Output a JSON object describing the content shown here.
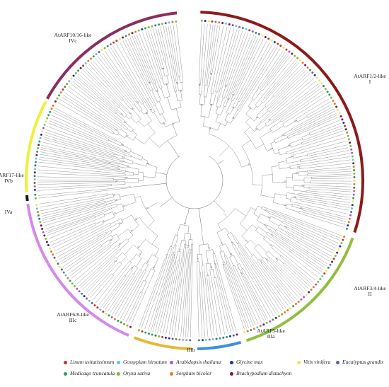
{
  "tree": {
    "center": [
      275,
      255
    ],
    "clades": [
      {
        "id": "I",
        "class": "I",
        "name": "AtARF1/2-like",
        "color": "#8b1a1a",
        "start_deg": 2,
        "end_deg": 108
      },
      {
        "id": "II",
        "class": "II",
        "name": "AtARF3/4-like",
        "color": "#8fbf3c",
        "start_deg": 110,
        "end_deg": 162
      },
      {
        "id": "IIIa",
        "class": "IIIa",
        "name": "AtARF5-like",
        "color": "#3b8ee0",
        "start_deg": 164,
        "end_deg": 179
      },
      {
        "id": "IIIb",
        "class": "IIIb",
        "name": "",
        "color": "#e6b832",
        "start_deg": 181,
        "end_deg": 201
      },
      {
        "id": "IIIc",
        "class": "IIIc",
        "name": "AtARF6/8-like",
        "color": "#d38ae8",
        "start_deg": 203,
        "end_deg": 262
      },
      {
        "id": "IVa",
        "class": "IVa",
        "name": "",
        "color": "#1a1a1a",
        "start_deg": 263,
        "end_deg": 265
      },
      {
        "id": "IVb",
        "class": "IVb",
        "name": "AtARF17-like",
        "color": "#f0ef3a",
        "start_deg": 266,
        "end_deg": 298
      },
      {
        "id": "IVc",
        "class": "IVc",
        "name": "AtARF10/16-like",
        "color": "#8b2d5f",
        "start_deg": 299,
        "end_deg": 354
      }
    ]
  },
  "legend": [
    {
      "name": "Linum usitatissimum",
      "color": "#c0392b"
    },
    {
      "name": "Gossypium hirsutum",
      "color": "#5bc8e6"
    },
    {
      "name": "Arabidopsis thaliana",
      "color": "#a05ad0"
    },
    {
      "name": "Glycine max",
      "color": "#1f2f9e"
    },
    {
      "name": "Vitis vinifera",
      "color": "#f2e35c"
    },
    {
      "name": "Eucalyptus grandis",
      "color": "#556699"
    },
    {
      "name": "Medicago truncatula",
      "color": "#2e9e5e"
    },
    {
      "name": "Oryza sativa",
      "color": "#7fbf3a"
    },
    {
      "name": "Sorghum bicolor",
      "color": "#e07b28"
    },
    {
      "name": "Brachypodium distachyon",
      "color": "#6a1f4f"
    }
  ]
}
